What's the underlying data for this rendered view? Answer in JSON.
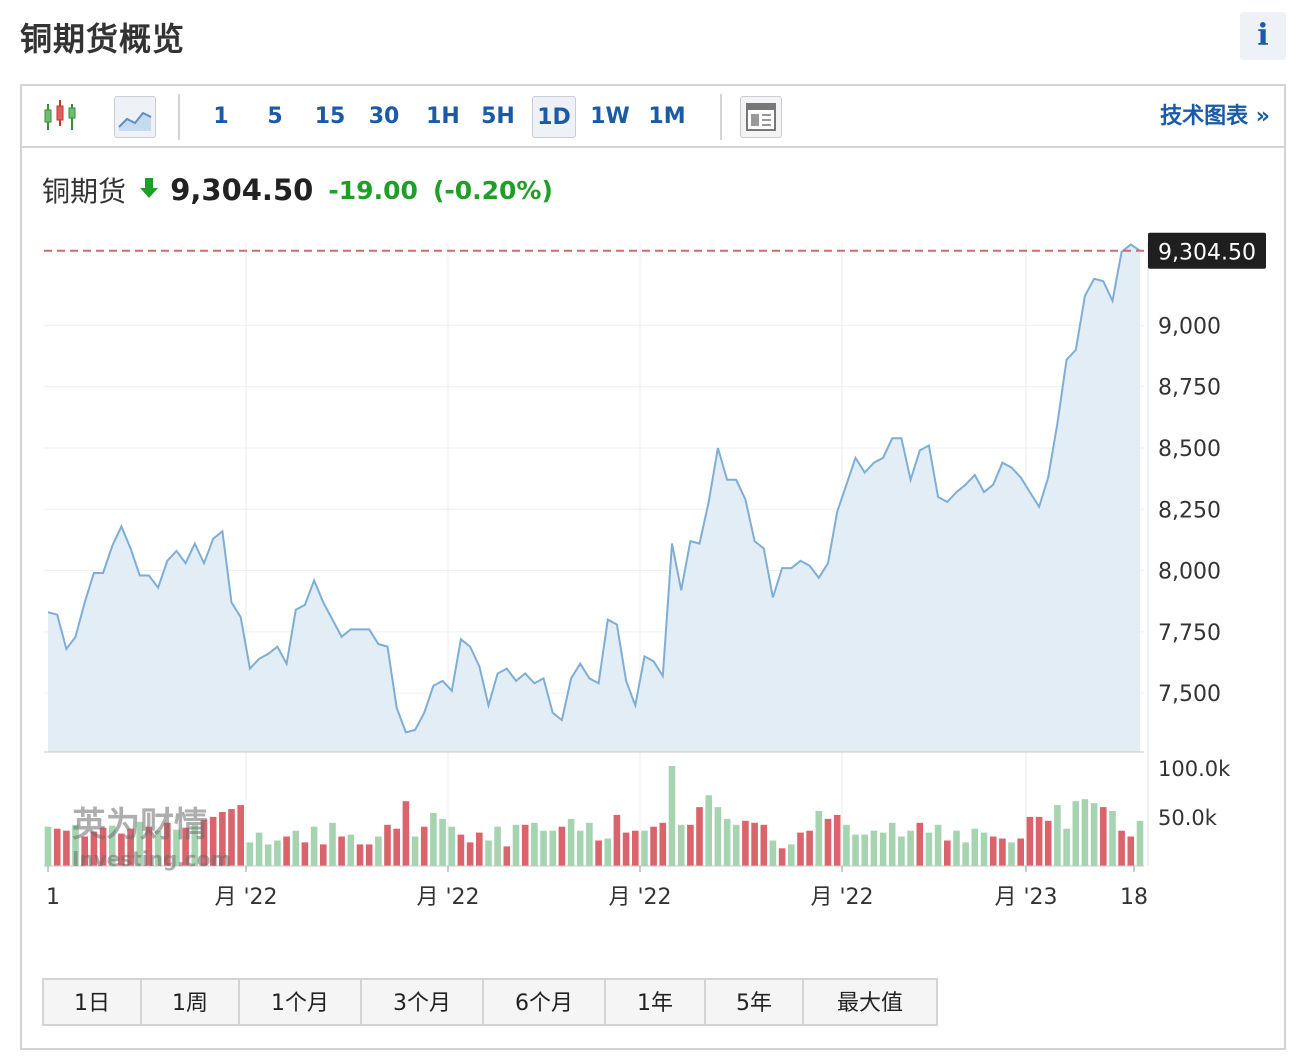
{
  "header": {
    "title": "铜期货概览",
    "info_label": "i"
  },
  "toolbar": {
    "timeframes": [
      {
        "label": "1",
        "active": false
      },
      {
        "label": "5",
        "active": false
      },
      {
        "label": "15",
        "active": false
      },
      {
        "label": "30",
        "active": false
      },
      {
        "label": "1H",
        "active": false
      },
      {
        "label": "5H",
        "active": false
      },
      {
        "label": "1D",
        "active": true
      },
      {
        "label": "1W",
        "active": false
      },
      {
        "label": "1M",
        "active": false
      }
    ],
    "icons": [
      "candlestick-icon",
      "area-chart-icon",
      "layout-icon"
    ],
    "tech_chart_link": "技术图表 »"
  },
  "quote": {
    "name": "铜期货",
    "direction": "down",
    "price": "9,304.50",
    "change": "-19.00",
    "change_pct": "(-0.20%)",
    "change_color": "#1f9e28"
  },
  "range_buttons": [
    "1日",
    "1周",
    "1个月",
    "3个月",
    "6个月",
    "1年",
    "5年",
    "最大值"
  ],
  "watermark": {
    "text": "英为财情",
    "subtext": "Investing.com"
  },
  "colors": {
    "line": "#7eaed6",
    "fill": "#e3edf6",
    "vol_up": "#a6d4b0",
    "vol_down": "#d9646c",
    "last_line": "#d26a6a",
    "accent": "#1b5aa6"
  },
  "chart_data": {
    "type": "area",
    "price_axis": {
      "ticks": [
        7500,
        7750,
        8000,
        8250,
        8500,
        8750,
        9000
      ],
      "tick_labels": [
        "7,500",
        "7,750",
        "8,000",
        "8,250",
        "8,500",
        "8,750",
        "9,000"
      ],
      "ylim": [
        7260,
        9340
      ]
    },
    "volume_axis": {
      "ticks": [
        50000,
        100000
      ],
      "tick_labels": [
        "50.0k",
        "100.0k"
      ],
      "ylim": [
        0,
        110000
      ]
    },
    "x_tick_labels": [
      "1",
      "月 '22",
      "月 '22",
      "月 '22",
      "月 '22",
      "月 '23",
      "18"
    ],
    "last_price": 9304.5,
    "last_price_label": "9,304.50",
    "price_values": [
      7830,
      7820,
      7680,
      7730,
      7870,
      7990,
      7990,
      8100,
      8180,
      8090,
      7980,
      7980,
      7930,
      8040,
      8080,
      8030,
      8110,
      8030,
      8130,
      8160,
      7870,
      7810,
      7600,
      7640,
      7660,
      7690,
      7620,
      7840,
      7860,
      7960,
      7870,
      7800,
      7730,
      7760,
      7760,
      7760,
      7700,
      7690,
      7440,
      7340,
      7350,
      7420,
      7530,
      7550,
      7510,
      7720,
      7690,
      7610,
      7450,
      7580,
      7600,
      7550,
      7580,
      7540,
      7560,
      7420,
      7390,
      7560,
      7620,
      7560,
      7540,
      7800,
      7780,
      7550,
      7450,
      7650,
      7630,
      7570,
      8110,
      7920,
      8120,
      8110,
      8280,
      8500,
      8370,
      8370,
      8290,
      8120,
      8090,
      7890,
      8010,
      8010,
      8040,
      8020,
      7970,
      8030,
      8240,
      8350,
      8460,
      8400,
      8440,
      8460,
      8540,
      8540,
      8370,
      8490,
      8510,
      8300,
      8280,
      8320,
      8350,
      8390,
      8320,
      8350,
      8440,
      8420,
      8380,
      8320,
      8260,
      8380,
      8600,
      8860,
      8900,
      9120,
      9190,
      9180,
      9100,
      9300,
      9330,
      9304.5
    ],
    "volume_values": [
      40000,
      38000,
      36000,
      42000,
      30000,
      35000,
      39000,
      41000,
      33000,
      38000,
      45000,
      40000,
      36000,
      44000,
      37000,
      39000,
      42000,
      47000,
      50000,
      55000,
      58000,
      62000,
      24000,
      34000,
      22000,
      26000,
      30000,
      36000,
      24000,
      40000,
      22000,
      44000,
      30000,
      32000,
      22000,
      22000,
      30000,
      42000,
      38000,
      66000,
      30000,
      40000,
      54000,
      48000,
      40000,
      32000,
      24000,
      34000,
      26000,
      40000,
      20000,
      42000,
      42000,
      44000,
      36000,
      36000,
      40000,
      48000,
      36000,
      44000,
      26000,
      28000,
      52000,
      34000,
      36000,
      36000,
      40000,
      44000,
      102000,
      42000,
      42000,
      60000,
      72000,
      60000,
      48000,
      42000,
      46000,
      44000,
      42000,
      26000,
      18000,
      22000,
      34000,
      36000,
      56000,
      48000,
      52000,
      42000,
      32000,
      32000,
      36000,
      34000,
      44000,
      30000,
      36000,
      44000,
      34000,
      42000,
      26000,
      36000,
      24000,
      38000,
      34000,
      30000,
      28000,
      24000,
      28000,
      50000,
      50000,
      46000,
      62000,
      38000,
      66000,
      68000,
      64000,
      60000,
      56000,
      36000,
      30000,
      46000
    ],
    "volume_direction": [
      "u",
      "d",
      "d",
      "u",
      "d",
      "d",
      "d",
      "u",
      "d",
      "d",
      "u",
      "d",
      "u",
      "d",
      "u",
      "d",
      "u",
      "d",
      "d",
      "d",
      "d",
      "d",
      "u",
      "u",
      "u",
      "u",
      "d",
      "u",
      "d",
      "u",
      "d",
      "u",
      "d",
      "u",
      "d",
      "d",
      "u",
      "d",
      "d",
      "d",
      "u",
      "d",
      "u",
      "u",
      "u",
      "d",
      "d",
      "d",
      "u",
      "u",
      "d",
      "u",
      "d",
      "u",
      "u",
      "u",
      "d",
      "u",
      "u",
      "u",
      "d",
      "u",
      "d",
      "d",
      "d",
      "u",
      "d",
      "d",
      "u",
      "u",
      "d",
      "d",
      "u",
      "u",
      "u",
      "u",
      "d",
      "d",
      "d",
      "u",
      "d",
      "u",
      "d",
      "d",
      "u",
      "d",
      "d",
      "u",
      "u",
      "u",
      "u",
      "u",
      "u",
      "u",
      "u",
      "d",
      "u",
      "u",
      "d",
      "u",
      "u",
      "u",
      "u",
      "d",
      "d",
      "u",
      "d",
      "d",
      "d",
      "d",
      "u",
      "u",
      "u",
      "u",
      "u",
      "d",
      "u",
      "d",
      "d",
      "u"
    ]
  }
}
